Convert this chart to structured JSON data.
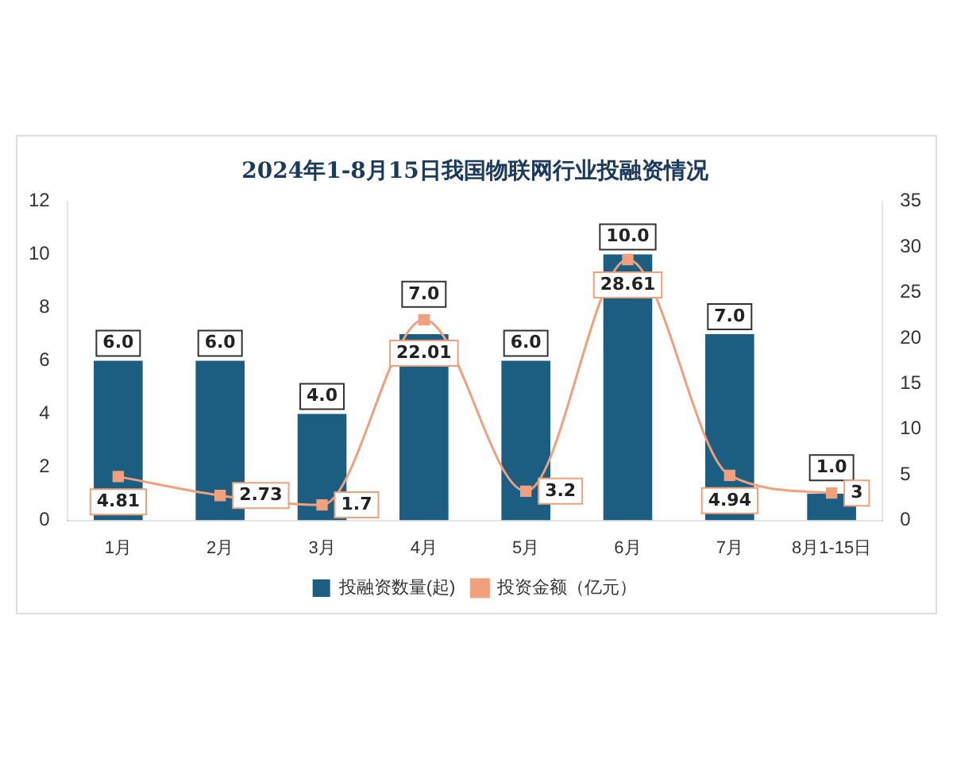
{
  "chart_data": {
    "type": "bar",
    "title": "2024年1-8月15日我国物联网行业投融资情况",
    "categories": [
      "1月",
      "2月",
      "3月",
      "4月",
      "5月",
      "6月",
      "7月",
      "8月1-15日"
    ],
    "series": [
      {
        "name": "投融资数量(起)",
        "color": "#1b5e82",
        "values": [
          6,
          6,
          4,
          7,
          6,
          10,
          7,
          1
        ],
        "value_labels": [
          "6.0",
          "6.0",
          "4.0",
          "7.0",
          "6.0",
          "10.0",
          "7.0",
          "1.0"
        ]
      },
      {
        "name": "投资金额（亿元）",
        "type": "line",
        "axis": "y2",
        "color": "#f0a07c",
        "values": [
          4.81,
          2.73,
          1.7,
          22.01,
          3.2,
          28.61,
          4.94,
          3
        ],
        "value_labels": [
          "4.81",
          "2.73",
          "1.7",
          "22.01",
          "3.2",
          "28.61",
          "4.94",
          "3"
        ]
      }
    ],
    "ylim": [
      0,
      12
    ],
    "yticks": [
      0,
      2,
      4,
      6,
      8,
      10,
      12
    ],
    "y2lim": [
      0,
      35
    ],
    "y2ticks": [
      0,
      5,
      10,
      15,
      20,
      25,
      30,
      35
    ],
    "legend": "bottom",
    "marker": "square"
  }
}
